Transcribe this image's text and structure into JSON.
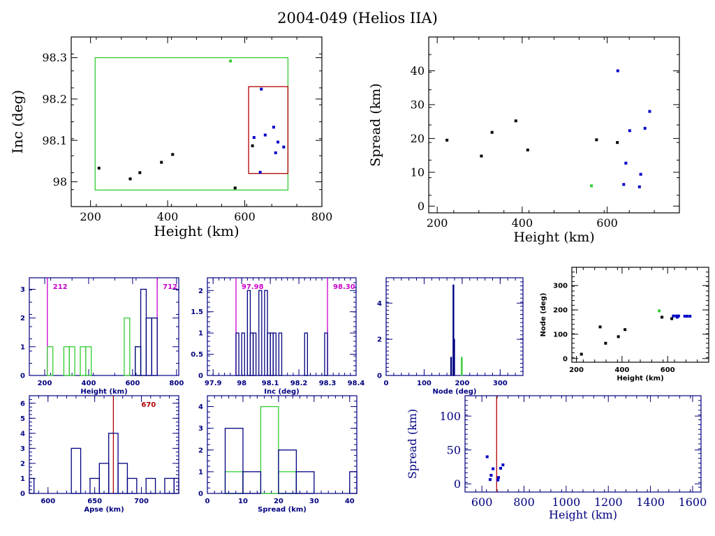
{
  "title": "2004-049 (Helios IIA)",
  "colors": {
    "black": "#000000",
    "navy": "#000080",
    "blue": "#0000c8",
    "green": "#33cc33",
    "red": "#b00000",
    "magenta": "#cc00cc"
  },
  "chart_data": [
    {
      "id": "inc_vs_height",
      "type": "scatter",
      "title": "",
      "xlabel": "Height (km)",
      "ylabel": "Inc (deg)",
      "xlim": [
        150,
        800
      ],
      "ylim": [
        97.94,
        98.35
      ],
      "xticks": [
        200,
        400,
        600,
        800
      ],
      "yticks": [
        98,
        98.1,
        98.2,
        98.3
      ],
      "ytick_labels": [
        "98",
        "98.1",
        "98.2",
        "98.3"
      ],
      "boxes": [
        {
          "name": "green-box",
          "color": "green",
          "x": [
            212,
            712
          ],
          "y": [
            97.98,
            98.3
          ]
        },
        {
          "name": "red-box",
          "color": "red",
          "x": [
            610,
            712
          ],
          "y": [
            98.02,
            98.23
          ]
        }
      ],
      "series": [
        {
          "name": "black",
          "color": "black",
          "points": [
            [
              222,
              98.033
            ],
            [
              303,
              98.007
            ],
            [
              328,
              98.022
            ],
            [
              384,
              98.047
            ],
            [
              413,
              98.066
            ],
            [
              575,
              97.985
            ],
            [
              620,
              98.087
            ]
          ]
        },
        {
          "name": "green",
          "color": "green",
          "points": [
            [
              563,
              98.292
            ]
          ]
        },
        {
          "name": "blue",
          "color": "blue",
          "points": [
            [
              624,
              98.107
            ],
            [
              643,
              98.224
            ],
            [
              653,
              98.113
            ],
            [
              675,
              98.132
            ],
            [
              686,
              98.096
            ],
            [
              680,
              98.07
            ],
            [
              701,
              98.084
            ],
            [
              640,
              98.023
            ]
          ]
        }
      ]
    },
    {
      "id": "spread_vs_height",
      "type": "scatter",
      "title": "",
      "xlabel": "Height (km)",
      "ylabel": "Spread (km)",
      "xlim": [
        180,
        770
      ],
      "ylim": [
        -2,
        50
      ],
      "xticks": [
        200,
        400,
        600
      ],
      "yticks": [
        0,
        10,
        20,
        30,
        40
      ],
      "series": [
        {
          "name": "black",
          "color": "black",
          "points": [
            [
              223,
              19.5
            ],
            [
              304,
              14.8
            ],
            [
              329,
              21.8
            ],
            [
              385,
              25.2
            ],
            [
              413,
              16.6
            ],
            [
              575,
              19.6
            ],
            [
              624,
              18.8
            ]
          ]
        },
        {
          "name": "green",
          "color": "green",
          "points": [
            [
              563,
              6.0
            ]
          ]
        },
        {
          "name": "blue",
          "color": "blue",
          "points": [
            [
              625,
              40.0
            ],
            [
              644,
              12.7
            ],
            [
              639,
              6.4
            ],
            [
              653,
              22.3
            ],
            [
              679,
              9.4
            ],
            [
              676,
              5.7
            ],
            [
              689,
              23.0
            ],
            [
              700,
              28.0
            ]
          ]
        }
      ]
    },
    {
      "id": "height_histogram",
      "type": "bar",
      "xlabel": "Height (km)",
      "ylabel": "",
      "xlim": [
        130,
        810
      ],
      "ylim": [
        0,
        3.4
      ],
      "xticks": [
        200,
        400,
        600,
        800
      ],
      "yticks": [
        0,
        1,
        2,
        3
      ],
      "bin_width": 25,
      "series": [
        {
          "name": "green",
          "color": "green",
          "bins": [
            [
              212,
              1
            ],
            [
              287,
              1
            ],
            [
              312,
              1
            ],
            [
              362,
              1
            ],
            [
              387,
              1
            ],
            [
              562,
              2
            ],
            [
              612,
              1
            ]
          ]
        },
        {
          "name": "navy",
          "color": "navy",
          "bins": [
            [
              612,
              1
            ],
            [
              637,
              3
            ],
            [
              662,
              2
            ],
            [
              687,
              2
            ]
          ]
        }
      ],
      "markers": [
        {
          "x": 212,
          "label": "212",
          "color": "magenta"
        },
        {
          "x": 712,
          "label": "712",
          "color": "magenta"
        }
      ]
    },
    {
      "id": "inc_histogram",
      "type": "bar",
      "xlabel": "Inc (deg)",
      "ylabel": "",
      "xlim": [
        97.88,
        98.4
      ],
      "ylim": [
        0,
        2.3
      ],
      "xticks": [
        97.9,
        98,
        98.1,
        98.2,
        98.3,
        98.4
      ],
      "xtick_labels": [
        "97.9",
        "98",
        "98.1",
        "98.2",
        "98.3",
        "98.4"
      ],
      "yticks": [
        0,
        0.5,
        1,
        1.5,
        2
      ],
      "ytick_labels": [
        "0",
        "0.5",
        "1",
        "1.5",
        "2"
      ],
      "bin_width": 0.01,
      "series": [
        {
          "name": "navy",
          "color": "navy",
          "bins": [
            [
              97.98,
              1
            ],
            [
              98.0,
              1
            ],
            [
              98.02,
              2
            ],
            [
              98.03,
              1
            ],
            [
              98.04,
              1
            ],
            [
              98.06,
              2
            ],
            [
              98.08,
              2
            ],
            [
              98.09,
              1
            ],
            [
              98.1,
              1
            ],
            [
              98.11,
              1
            ],
            [
              98.13,
              1
            ],
            [
              98.22,
              1
            ],
            [
              98.29,
              1
            ]
          ]
        }
      ],
      "markers": [
        {
          "x": 97.98,
          "label": "97.98",
          "color": "magenta"
        },
        {
          "x": 98.3,
          "label": "98.30",
          "color": "magenta"
        }
      ]
    },
    {
      "id": "node_histogram",
      "type": "bar",
      "xlabel": "Node (deg)",
      "ylabel": "",
      "xlim": [
        0,
        360
      ],
      "ylim": [
        0,
        5.4
      ],
      "xticks": [
        0,
        100,
        200,
        300
      ],
      "yticks": [
        0,
        2,
        4
      ],
      "bin_width": 2,
      "series": [
        {
          "name": "navy",
          "color": "navy",
          "bins": [
            [
              170,
              1
            ],
            [
              176,
              5
            ],
            [
              178,
              2
            ]
          ]
        },
        {
          "name": "green",
          "color": "green",
          "bins": [
            [
              198,
              1
            ]
          ]
        }
      ]
    },
    {
      "id": "node_vs_height",
      "type": "scatter",
      "xlabel": "Height (km)",
      "ylabel": "Node (deg)",
      "xlim": [
        180,
        780
      ],
      "ylim": [
        -15,
        375
      ],
      "xticks": [
        200,
        400,
        600
      ],
      "yticks": [
        0,
        100,
        200,
        300
      ],
      "series": [
        {
          "name": "black",
          "color": "black",
          "points": [
            [
              222,
              18
            ],
            [
              304,
              130
            ],
            [
              328,
              63
            ],
            [
              384,
              90
            ],
            [
              413,
              119
            ],
            [
              575,
              170
            ],
            [
              618,
              164
            ]
          ]
        },
        {
          "name": "green",
          "color": "green",
          "points": [
            [
              563,
              196
            ]
          ]
        },
        {
          "name": "blue",
          "color": "blue",
          "points": [
            [
              625,
              175
            ],
            [
              638,
              175
            ],
            [
              642,
              170
            ],
            [
              648,
              175
            ],
            [
              675,
              174
            ],
            [
              685,
              174
            ],
            [
              698,
              174
            ]
          ]
        }
      ]
    },
    {
      "id": "apse_histogram",
      "type": "bar",
      "xlabel": "Apse (km)",
      "ylabel": "",
      "xlim": [
        580,
        740
      ],
      "ylim": [
        0,
        6.5
      ],
      "xticks": [
        600,
        650,
        700
      ],
      "yticks": [
        0,
        1,
        2,
        3,
        4,
        5,
        6
      ],
      "bin_width": 10,
      "series": [
        {
          "name": "navy",
          "color": "navy",
          "bins": [
            [
              575,
              1
            ],
            [
              625,
              3
            ],
            [
              645,
              1
            ],
            [
              655,
              2
            ],
            [
              665,
              4
            ],
            [
              675,
              2
            ],
            [
              685,
              1
            ],
            [
              705,
              1
            ],
            [
              725,
              1
            ],
            [
              735,
              1
            ]
          ]
        }
      ],
      "markers": [
        {
          "x": 670,
          "label": "670",
          "color": "red"
        }
      ]
    },
    {
      "id": "spread_histogram",
      "type": "bar",
      "xlabel": "Spread (km)",
      "ylabel": "",
      "xlim": [
        0,
        42
      ],
      "ylim": [
        0,
        4.5
      ],
      "xticks": [
        0,
        10,
        20,
        30,
        40
      ],
      "yticks": [
        0,
        1,
        2,
        3,
        4
      ],
      "bin_width": 5,
      "series": [
        {
          "name": "green",
          "color": "green",
          "bins": [
            [
              5,
              1
            ],
            [
              15,
              4
            ],
            [
              20,
              1
            ]
          ]
        },
        {
          "name": "navy",
          "color": "navy",
          "bins": [
            [
              5,
              3
            ],
            [
              10,
              1
            ],
            [
              15,
              0
            ],
            [
              20,
              2
            ],
            [
              25,
              1
            ],
            [
              40,
              1
            ]
          ]
        }
      ]
    },
    {
      "id": "spread_vs_height_wide",
      "type": "scatter",
      "xlabel": "Height (km)",
      "ylabel": "Spread (km)",
      "xlim": [
        520,
        1640
      ],
      "ylim": [
        -12,
        130
      ],
      "xticks": [
        600,
        800,
        1000,
        1200,
        1400,
        1600
      ],
      "yticks": [
        0,
        50,
        100
      ],
      "series": [
        {
          "name": "blue",
          "color": "blue",
          "points": [
            [
              625,
              40
            ],
            [
              639,
              6.4
            ],
            [
              644,
              12.7
            ],
            [
              653,
              22.3
            ],
            [
              676,
              5.7
            ],
            [
              679,
              9.4
            ],
            [
              689,
              23
            ],
            [
              700,
              28
            ]
          ]
        }
      ],
      "markers": [
        {
          "x": 670,
          "label": "",
          "color": "red"
        }
      ]
    }
  ]
}
